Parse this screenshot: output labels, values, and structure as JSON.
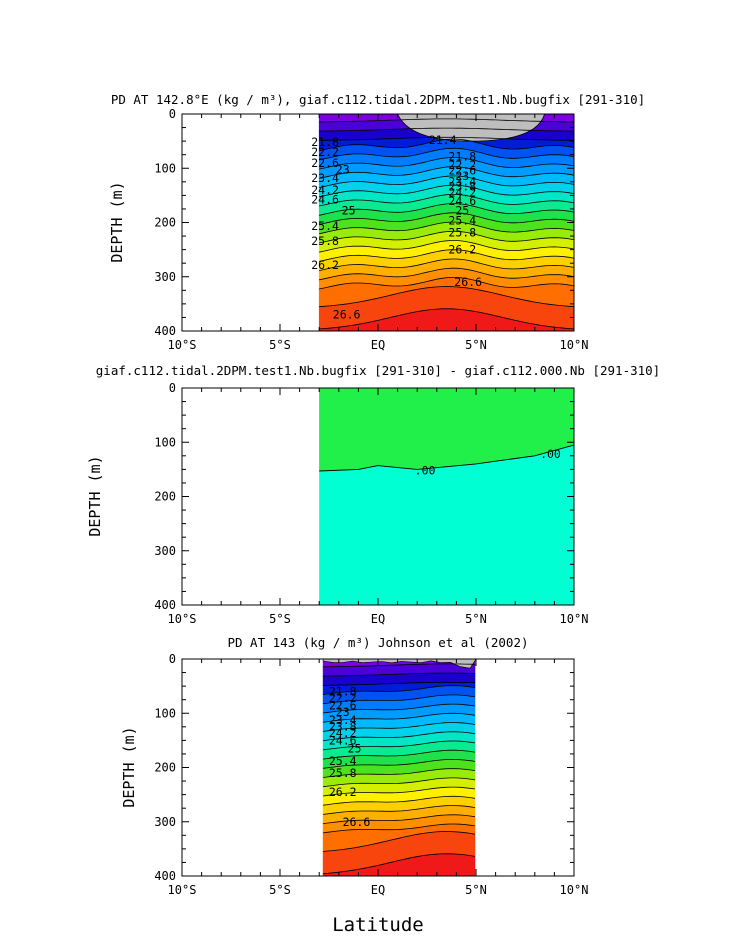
{
  "figure": {
    "xlabel": "Latitude"
  },
  "chart_data": [
    {
      "type": "heatmap",
      "title": "PD AT 142.8°E (kg / m³), giaf.c112.tidal.2DPM.test1.Nb.bugfix [291-310]",
      "xlabel": "",
      "ylabel": "DEPTH (m)",
      "xlim": [
        -10,
        10
      ],
      "ylim": [
        400,
        0
      ],
      "xticks": [
        -10,
        -5,
        0,
        5,
        10
      ],
      "xtick_labels": [
        "10°S",
        "5°S",
        "EQ",
        "5°N",
        "10°N"
      ],
      "yticks": [
        0,
        100,
        200,
        300,
        400
      ],
      "ytick_labels": [
        "0",
        "100",
        "200",
        "300",
        "400"
      ],
      "data_lat_range": [
        -3,
        10
      ],
      "missing_color": "#bebebe",
      "missing_region": {
        "lat": [
          1,
          8.5
        ],
        "max_depth": 50
      },
      "contour_step": 0.2,
      "contour_levels": [
        21.4,
        21.8,
        22.2,
        22.6,
        23,
        23.4,
        23.8,
        24.2,
        24.6,
        25,
        25.4,
        25.8,
        26.2,
        26.6
      ],
      "contour_labels": [
        {
          "text": "21.4",
          "lat": 3.3,
          "depth": 48
        },
        {
          "text": "21.8",
          "lat": -2.7,
          "depth": 52
        },
        {
          "text": "22.2",
          "lat": -2.7,
          "depth": 70
        },
        {
          "text": "22.6",
          "lat": -2.7,
          "depth": 90
        },
        {
          "text": "23",
          "lat": -1.8,
          "depth": 102
        },
        {
          "text": "23.4",
          "lat": -2.7,
          "depth": 118
        },
        {
          "text": "24.2",
          "lat": -2.7,
          "depth": 140
        },
        {
          "text": "24.6",
          "lat": -2.7,
          "depth": 158
        },
        {
          "text": "25",
          "lat": -1.5,
          "depth": 178
        },
        {
          "text": "25.4",
          "lat": -2.7,
          "depth": 206
        },
        {
          "text": "25.8",
          "lat": -2.7,
          "depth": 234
        },
        {
          "text": "26.2",
          "lat": -2.7,
          "depth": 278
        },
        {
          "text": "26.6",
          "lat": -1.6,
          "depth": 370
        },
        {
          "text": "21.8",
          "lat": 4.3,
          "depth": 78
        },
        {
          "text": "22.2",
          "lat": 4.3,
          "depth": 94
        },
        {
          "text": "22.6",
          "lat": 4.3,
          "depth": 104
        },
        {
          "text": "23",
          "lat": 4.3,
          "depth": 114
        },
        {
          "text": "23.4",
          "lat": 4.3,
          "depth": 124
        },
        {
          "text": "23.8",
          "lat": 4.3,
          "depth": 134
        },
        {
          "text": "24.2",
          "lat": 4.3,
          "depth": 145
        },
        {
          "text": "24.6",
          "lat": 4.3,
          "depth": 160
        },
        {
          "text": "25",
          "lat": 4.3,
          "depth": 178
        },
        {
          "text": "25.4",
          "lat": 4.3,
          "depth": 196
        },
        {
          "text": "25.8",
          "lat": 4.3,
          "depth": 218
        },
        {
          "text": "26.2",
          "lat": 4.3,
          "depth": 250
        },
        {
          "text": "26.6",
          "lat": 4.6,
          "depth": 310
        }
      ]
    },
    {
      "type": "heatmap",
      "title": "giaf.c112.tidal.2DPM.test1.Nb.bugfix [291-310] - giaf.c112.000.Nb [291-310]",
      "xlabel": "",
      "ylabel": "DEPTH (m)",
      "xlim": [
        -10,
        10
      ],
      "ylim": [
        400,
        0
      ],
      "xticks": [
        -10,
        -5,
        0,
        5,
        10
      ],
      "xtick_labels": [
        "10°S",
        "5°S",
        "EQ",
        "5°N",
        "10°N"
      ],
      "yticks": [
        0,
        100,
        200,
        300,
        400
      ],
      "ytick_labels": [
        "0",
        "100",
        "200",
        "300",
        "400"
      ],
      "data_lat_range": [
        -3,
        10
      ],
      "upper_color": "#22f04a",
      "lower_color": "#00ffd2",
      "zero_contour": {
        "lat": [
          -3,
          -1,
          0,
          2,
          5,
          8,
          10
        ],
        "depth": [
          153,
          150,
          143,
          150,
          140,
          125,
          105
        ]
      },
      "contour_labels": [
        {
          "text": ".00",
          "lat": 2.4,
          "depth": 152
        },
        {
          "text": ".00",
          "lat": 8.8,
          "depth": 122
        }
      ]
    },
    {
      "type": "heatmap",
      "title": "PD AT 143 (kg / m³) Johnson et al (2002)",
      "xlabel": "Latitude",
      "ylabel": "DEPTH (m)",
      "xlim": [
        -10,
        10
      ],
      "ylim": [
        400,
        0
      ],
      "xticks": [
        -10,
        -5,
        0,
        5,
        10
      ],
      "xtick_labels": [
        "10°S",
        "5°S",
        "EQ",
        "5°N",
        "10°N"
      ],
      "yticks": [
        0,
        100,
        200,
        300,
        400
      ],
      "ytick_labels": [
        "0",
        "100",
        "200",
        "300",
        "400"
      ],
      "data_lat_range": [
        -2.8,
        5
      ],
      "missing_color": "#bebebe",
      "contour_step": 0.2,
      "contour_levels": [
        21.8,
        22.2,
        22.6,
        23,
        23.4,
        23.8,
        24.2,
        24.6,
        25,
        25.4,
        25.8,
        26.2,
        26.6
      ],
      "contour_labels": [
        {
          "text": "21.8",
          "lat": -1.8,
          "depth": 60
        },
        {
          "text": "22.2",
          "lat": -1.8,
          "depth": 72
        },
        {
          "text": "22.6",
          "lat": -1.8,
          "depth": 86
        },
        {
          "text": "23",
          "lat": -1.8,
          "depth": 98
        },
        {
          "text": "23.4",
          "lat": -1.8,
          "depth": 112
        },
        {
          "text": "23.8",
          "lat": -1.8,
          "depth": 124
        },
        {
          "text": "24.2",
          "lat": -1.8,
          "depth": 136
        },
        {
          "text": "24.6",
          "lat": -1.8,
          "depth": 150
        },
        {
          "text": "25",
          "lat": -1.2,
          "depth": 165
        },
        {
          "text": "25.4",
          "lat": -1.8,
          "depth": 188
        },
        {
          "text": "25.8",
          "lat": -1.8,
          "depth": 210
        },
        {
          "text": "26.2",
          "lat": -1.8,
          "depth": 245
        },
        {
          "text": "26.6",
          "lat": -1.1,
          "depth": 300
        }
      ]
    }
  ]
}
